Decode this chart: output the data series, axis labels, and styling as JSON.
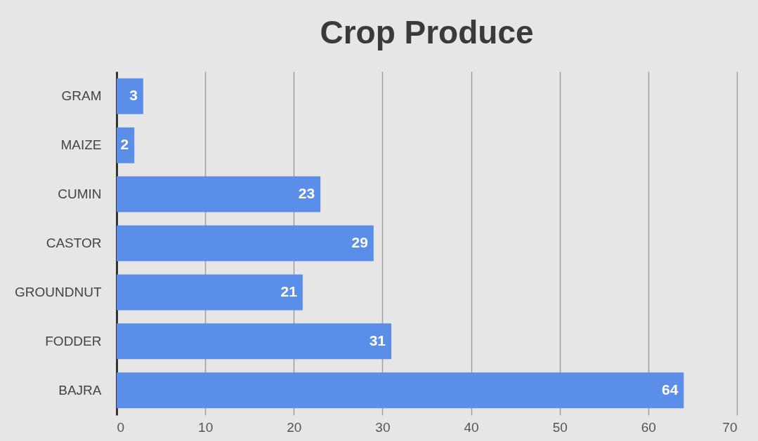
{
  "chart_data": {
    "type": "bar",
    "orientation": "horizontal",
    "title": "Crop Produce",
    "categories": [
      "GRAM",
      "MAIZE",
      "CUMIN",
      "CASTOR",
      "GROUNDNUT",
      "FODDER",
      "BAJRA"
    ],
    "values": [
      3,
      2,
      23,
      29,
      21,
      31,
      64
    ],
    "color": "#5b8ee8",
    "xlim": [
      0,
      70
    ],
    "xticks": [
      0,
      10,
      20,
      30,
      40,
      50,
      60,
      70
    ],
    "grid": "x",
    "data_labels": true
  }
}
